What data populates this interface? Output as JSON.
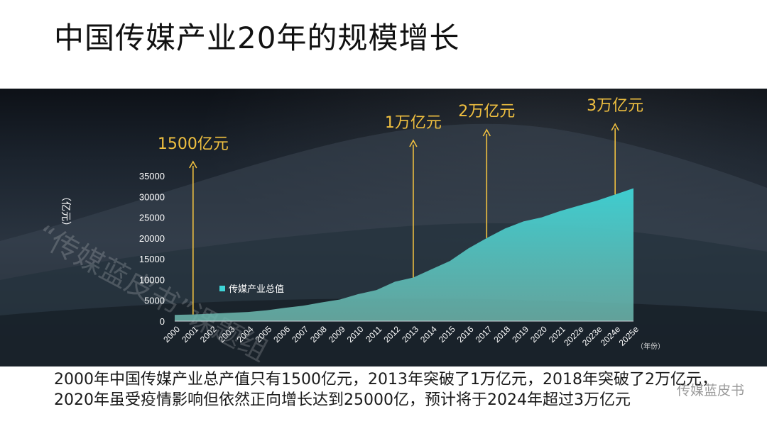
{
  "title": "中国传媒产业20年的规模增长",
  "caption": "2000年中国传媒产业总产值只有1500亿元，2013年突破了1万亿元，2018年突破了2万亿元，2020年虽受疫情影响但依然正向增长达到25000亿，预计将于2024年超过3万亿元",
  "watermark_text": "“传媒蓝皮书”课题组",
  "watermark_corner": "传媒蓝皮书",
  "colors": {
    "area_top": "#3fd4d6",
    "area_bottom": "#6fb7ad",
    "annotation": "#f0c040",
    "axis_text": "#ffffff"
  },
  "chart_data": {
    "type": "area",
    "ylabel": "（亿元）",
    "xlabel": "（年份）",
    "ylim": [
      0,
      35000
    ],
    "yticks": [
      0,
      5000,
      10000,
      15000,
      20000,
      25000,
      30000,
      35000
    ],
    "x": [
      "2000",
      "2001",
      "2002",
      "2003",
      "2004",
      "2005",
      "2006",
      "2007",
      "2008",
      "2009",
      "2010",
      "2011",
      "2012",
      "2013",
      "2014",
      "2015",
      "2016",
      "2017",
      "2018",
      "2019",
      "2020",
      "2021",
      "2022e",
      "2023e",
      "2024e",
      "2025e"
    ],
    "series": [
      {
        "name": "传媒产业总值",
        "values": [
          1500,
          1600,
          1800,
          2000,
          2200,
          2600,
          3200,
          3700,
          4500,
          5200,
          6500,
          7500,
          9500,
          10500,
          12500,
          14500,
          17500,
          20000,
          22300,
          24000,
          25000,
          26500,
          27800,
          29000,
          30500,
          32000
        ]
      }
    ],
    "legend_position": "inside-left",
    "annotations": [
      {
        "label": "1500亿元",
        "x": "2001"
      },
      {
        "label": "1万亿元",
        "x": "2013"
      },
      {
        "label": "2万亿元",
        "x": "2017"
      },
      {
        "label": "3万亿元",
        "x": "2024e"
      }
    ]
  }
}
